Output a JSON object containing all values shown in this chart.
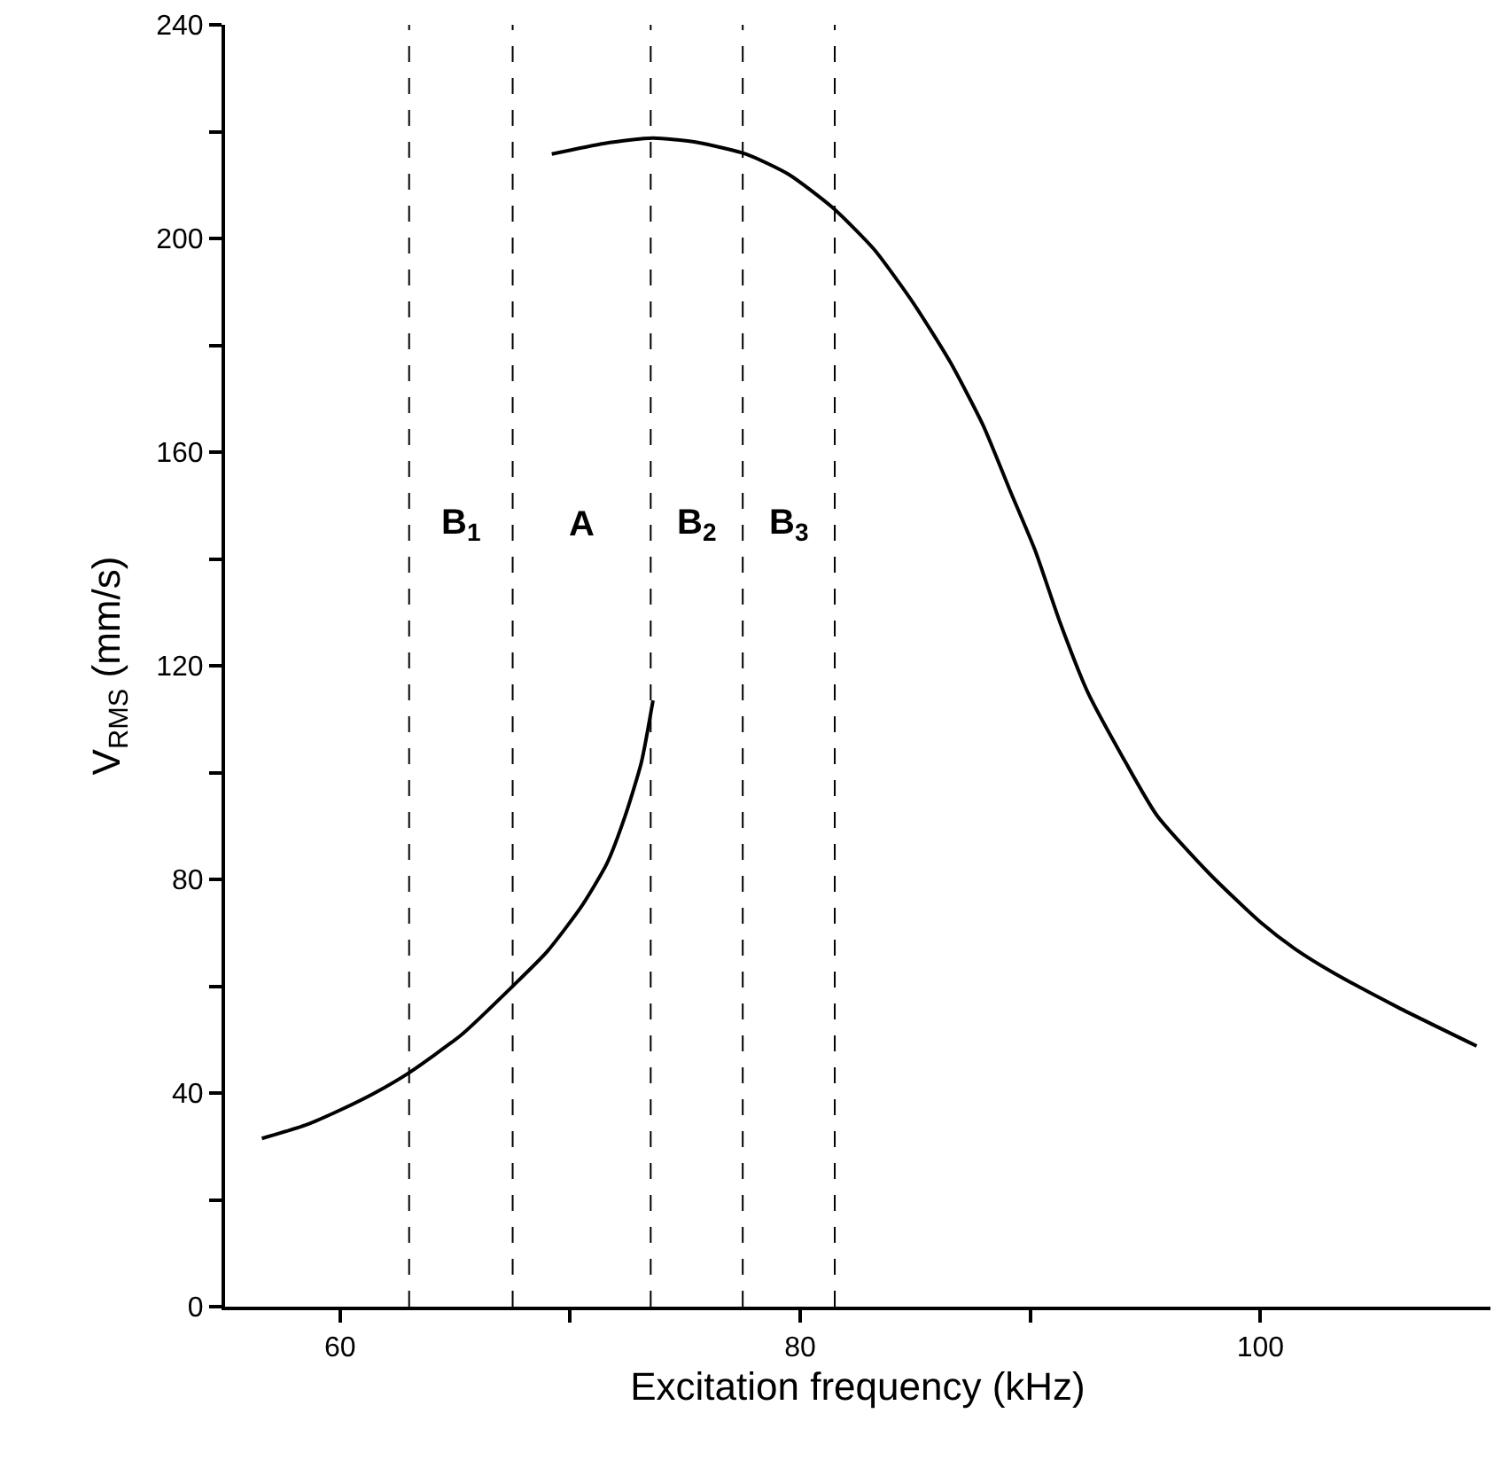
{
  "chart_data": {
    "type": "line",
    "xlabel": "Excitation frequency (kHz)",
    "ylabel": "V$_{RMS}$ (mm/s)",
    "xlim": [
      55,
      110
    ],
    "ylim": [
      0,
      240
    ],
    "xticks": [
      60,
      {
        "value": 70,
        "label": null
      },
      80,
      {
        "value": 90,
        "label": null
      },
      100
    ],
    "yticks": [
      0,
      {
        "value": 20,
        "label": null
      },
      40,
      {
        "value": 60,
        "label": null
      },
      80,
      {
        "value": 100,
        "label": null
      },
      120,
      {
        "value": 140,
        "label": null
      },
      160,
      {
        "value": 180,
        "label": null
      },
      200,
      {
        "value": 220,
        "label": null
      },
      240
    ],
    "grid": false,
    "marker": "none",
    "line_style": "solid",
    "series": [
      {
        "color": "#000000",
        "x": [
          56.6,
          58.5,
          60,
          61.5,
          63,
          65.3,
          67.5,
          69,
          70.5,
          71.6,
          72.4,
          73.1,
          73.6
        ],
        "values": [
          31.5,
          34,
          36.8,
          40,
          43.8,
          51,
          60,
          66.5,
          75,
          83,
          92,
          102,
          113.5
        ]
      },
      {
        "color": "#000000",
        "x": [
          69.2,
          71.5,
          73.6,
          75.5,
          77.65,
          79.5,
          81.4,
          83.2,
          84.9,
          86.5,
          87.95,
          89.1,
          90.2,
          91.3,
          92.5,
          94,
          95.5,
          97.8,
          100,
          101.5,
          103.1,
          106,
          109.4
        ],
        "values": [
          215.8,
          217.8,
          218.8,
          218,
          215.8,
          212,
          205.8,
          198,
          188,
          177,
          165,
          153,
          141.7,
          128,
          115,
          103,
          92,
          81,
          72,
          67,
          62.7,
          56,
          48.8
        ]
      }
    ],
    "ref_lines": [
      {
        "axis": "x",
        "value": 63,
        "line_style": "dashed",
        "color": "#000000"
      },
      {
        "axis": "x",
        "value": 67.5,
        "line_style": "dashed",
        "color": "#000000"
      },
      {
        "axis": "x",
        "value": 73.5,
        "line_style": "dashed",
        "color": "#000000"
      },
      {
        "axis": "x",
        "value": 77.5,
        "line_style": "dashed",
        "color": "#000000"
      },
      {
        "axis": "x",
        "value": 81.5,
        "line_style": "dashed",
        "color": "#000000"
      }
    ],
    "annotations": [
      "B$_{1}$",
      "A",
      "B$_{2}$",
      "B$_{3}$"
    ]
  }
}
